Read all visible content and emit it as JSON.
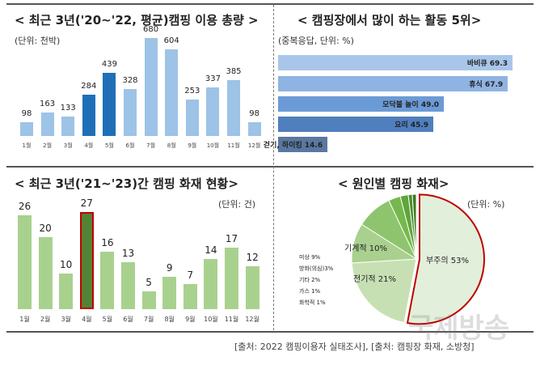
{
  "chart_data": [
    {
      "type": "bar",
      "title": "< 최근 3년('20~'22, 평균)캠핑 이용 총량 >",
      "unit": "(단위: 천박)",
      "categories": [
        "1월",
        "2월",
        "3월",
        "4월",
        "5월",
        "6월",
        "7월",
        "8월",
        "9월",
        "10월",
        "11월",
        "12월"
      ],
      "values": [
        98,
        163,
        133,
        284,
        439,
        328,
        680,
        604,
        253,
        337,
        385,
        98
      ],
      "highlighted": [
        "4월",
        "5월"
      ],
      "colors": {
        "normal": "#9dc3e6",
        "highlight": "#1f6fb8"
      }
    },
    {
      "type": "bar",
      "orientation": "horizontal",
      "title": "< 캠핑장에서 많이 하는 활동 5위>",
      "unit": "(중복응답, 단위: %)",
      "categories": [
        "바비큐",
        "휴식",
        "모닥불 놀이",
        "요리",
        "걷기, 하이킹"
      ],
      "values": [
        69.3,
        67.9,
        49.0,
        45.9,
        14.6
      ],
      "value_labels": [
        "69.3",
        "67.9",
        "49.0",
        "45.9",
        "14.6"
      ]
    },
    {
      "type": "bar",
      "title": "< 최근 3년('21~'23)간 캠핑 화재 현황>",
      "unit": "(단위: 건)",
      "categories": [
        "1월",
        "2월",
        "3월",
        "4월",
        "5월",
        "6월",
        "7월",
        "8월",
        "9월",
        "10월",
        "11월",
        "12월"
      ],
      "values": [
        26,
        20,
        10,
        27,
        16,
        13,
        5,
        9,
        7,
        14,
        17,
        12
      ],
      "highlighted": [
        "4월"
      ],
      "colors": {
        "normal": "#a9d18e",
        "highlight": "#548235",
        "highlight_border": "#c00000"
      }
    },
    {
      "type": "pie",
      "title": "< 원인별 캠핑 화재>",
      "unit": "(단위: %)",
      "slices": [
        {
          "label": "부주의",
          "value": 53
        },
        {
          "label": "전기적",
          "value": 21
        },
        {
          "label": "기계적",
          "value": 10
        },
        {
          "label": "미상",
          "value": 9
        },
        {
          "label": "방화(의심)",
          "value": 3
        },
        {
          "label": "기타",
          "value": 2
        },
        {
          "label": "가스",
          "value": 1
        },
        {
          "label": "화학적",
          "value": 1
        }
      ],
      "slice_labels": [
        "부주의 53%",
        "전기적 21%",
        "기계적 10%",
        "미상 9%",
        "방화(의심)3%",
        "기타 2%",
        "가스 1%",
        "화학적 1%"
      ]
    }
  ],
  "footer": "[출처: 2022 캠핑이용자 실태조사], [출처: 캠핑장 화재, 소방청]",
  "watermark": "국제방송"
}
